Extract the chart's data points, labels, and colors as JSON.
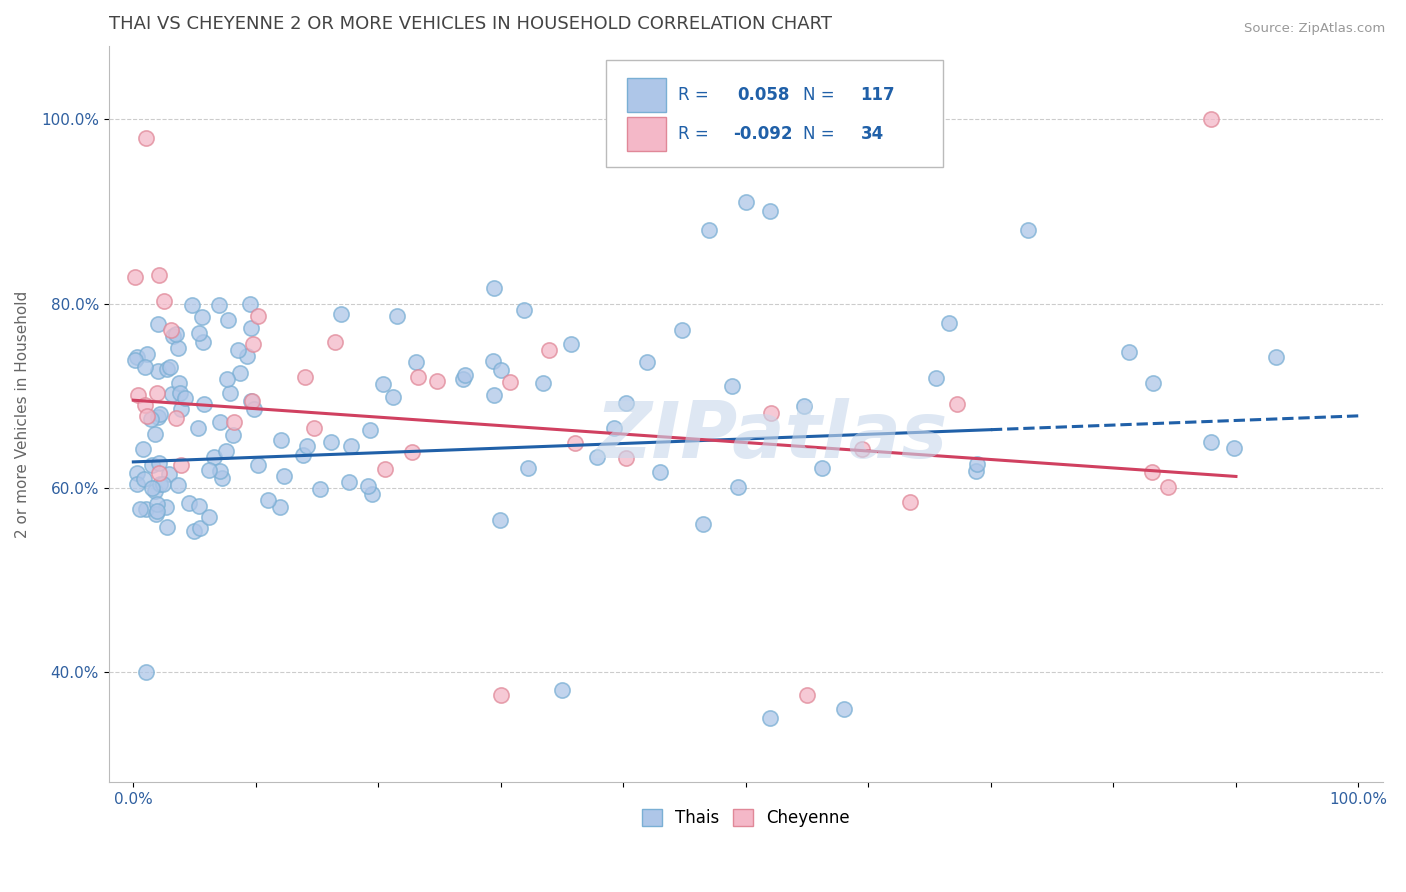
{
  "title": "THAI VS CHEYENNE 2 OR MORE VEHICLES IN HOUSEHOLD CORRELATION CHART",
  "source": "Source: ZipAtlas.com",
  "ylabel": "2 or more Vehicles in Household",
  "xlim": [
    -0.02,
    1.02
  ],
  "ylim": [
    0.28,
    1.08
  ],
  "x_ticks": [
    0.0,
    0.1,
    0.2,
    0.3,
    0.4,
    0.5,
    0.6,
    0.7,
    0.8,
    0.9,
    1.0
  ],
  "x_tick_labels": [
    "0.0%",
    "",
    "",
    "",
    "",
    "",
    "",
    "",
    "",
    "",
    "100.0%"
  ],
  "y_ticks": [
    0.4,
    0.6,
    0.8,
    1.0
  ],
  "y_tick_labels": [
    "40.0%",
    "60.0%",
    "80.0%",
    "100.0%"
  ],
  "thai_color": "#aec6e8",
  "thai_edge_color": "#7aafd4",
  "cheyenne_color": "#f4b8c8",
  "cheyenne_edge_color": "#e08898",
  "thai_R": 0.058,
  "thai_N": 117,
  "cheyenne_R": -0.092,
  "cheyenne_N": 34,
  "thai_line_color": "#2060a8",
  "cheyenne_line_color": "#d04060",
  "legend_color": "#2060a8",
  "watermark": "ZIPatlas",
  "watermark_color": "#c8d8ec",
  "background_color": "#ffffff",
  "grid_color": "#cccccc",
  "title_color": "#444444",
  "marker_size": 120,
  "thai_intercept": 0.628,
  "thai_slope_val": 0.05,
  "chey_intercept": 0.695,
  "chey_slope_val": -0.092
}
